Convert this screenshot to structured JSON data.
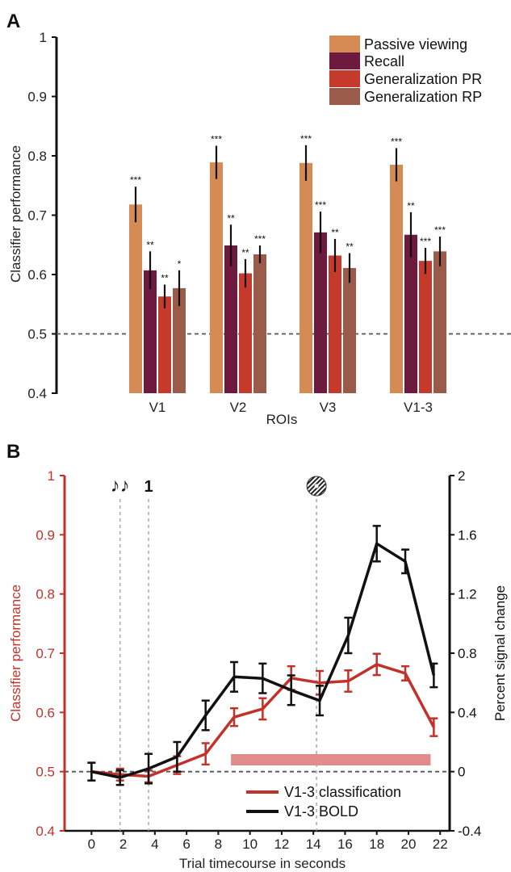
{
  "panels": {
    "a_label": "A",
    "b_label": "B"
  },
  "chart_data": [
    {
      "type": "bar",
      "title": "",
      "xlabel": "ROIs",
      "ylabel": "Classifier performance",
      "ylim": [
        0.4,
        1.0
      ],
      "yticks": [
        "0.4",
        "0.5",
        "0.6",
        "0.7",
        "0.8",
        "0.9",
        "1"
      ],
      "categories": [
        "V1",
        "V2",
        "V3",
        "V1-3"
      ],
      "chance_level": 0.5,
      "legend_position": "top-right",
      "series": [
        {
          "name": "Passive viewing",
          "color": "#D68B54",
          "values": [
            0.718,
            0.789,
            0.788,
            0.785
          ],
          "errors": [
            0.03,
            0.028,
            0.03,
            0.028
          ],
          "significance": [
            "***",
            "***",
            "***",
            "***"
          ]
        },
        {
          "name": "Recall",
          "color": "#6E1A3E",
          "values": [
            0.607,
            0.649,
            0.671,
            0.667
          ],
          "errors": [
            0.032,
            0.035,
            0.035,
            0.038
          ],
          "significance": [
            "**",
            "**",
            "***",
            "**"
          ]
        },
        {
          "name": "Generalization PR",
          "color": "#C63A2C",
          "values": [
            0.563,
            0.602,
            0.632,
            0.623
          ],
          "errors": [
            0.02,
            0.024,
            0.028,
            0.022
          ],
          "significance": [
            "**",
            "**",
            "**",
            "***"
          ]
        },
        {
          "name": "Generalization RP",
          "color": "#9B5B4B",
          "values": [
            0.577,
            0.634,
            0.611,
            0.639
          ],
          "errors": [
            0.03,
            0.015,
            0.025,
            0.025
          ],
          "significance": [
            "*",
            "***",
            "**",
            "***"
          ]
        }
      ]
    },
    {
      "type": "line",
      "title": "",
      "xlabel": "Trial timecourse in seconds",
      "ylabel_left": "Classifier performance",
      "ylabel_right": "Percent signal change",
      "xlim": [
        -1.7,
        22.6
      ],
      "ylim_left": [
        0.4,
        1.0
      ],
      "ylim_right": [
        -0.4,
        2.0
      ],
      "xticks": [
        "0",
        "2",
        "4",
        "6",
        "8",
        "10",
        "12",
        "14",
        "16",
        "18",
        "20",
        "22"
      ],
      "yticks_left": [
        "0.4",
        "0.5",
        "0.6",
        "0.7",
        "0.8",
        "0.9",
        "1"
      ],
      "yticks_right": [
        "-0.4",
        "0",
        "0.4",
        "0.8",
        "1.2",
        "1.6",
        "2"
      ],
      "chance_level": 0.5,
      "legend_position": "bottom-right",
      "events": [
        {
          "x": 1.8,
          "marker": "♪♪",
          "icon": "music-notes-icon"
        },
        {
          "x": 3.6,
          "marker": "1",
          "icon": ""
        },
        {
          "x": 14.2,
          "marker": "",
          "icon": "grating-icon"
        }
      ],
      "significance_bar": {
        "x_start": 8.8,
        "x_end": 21.4,
        "color": "#E08C8C"
      },
      "series": [
        {
          "name": "V1-3 classification",
          "color": "#C1332A",
          "axis": "left",
          "x": [
            0,
            1.8,
            3.6,
            5.4,
            7.2,
            9,
            10.8,
            12.6,
            14.4,
            16.2,
            18,
            19.8,
            21.6
          ],
          "y": [
            0.5,
            0.495,
            0.492,
            0.511,
            0.53,
            0.592,
            0.606,
            0.658,
            0.65,
            0.653,
            0.681,
            0.666,
            0.575
          ],
          "errors": [
            0.015,
            0.01,
            0.01,
            0.015,
            0.018,
            0.015,
            0.018,
            0.02,
            0.02,
            0.018,
            0.018,
            0.012,
            0.015
          ]
        },
        {
          "name": "V1-3 BOLD",
          "color": "#111111",
          "axis": "right",
          "x": [
            0,
            1.8,
            3.6,
            5.4,
            7.2,
            9,
            10.8,
            12.6,
            14.4,
            16.2,
            18,
            19.8,
            21.6
          ],
          "y": [
            0.0,
            -0.04,
            0.02,
            0.1,
            0.38,
            0.64,
            0.63,
            0.55,
            0.48,
            0.92,
            1.54,
            1.42,
            0.65
          ],
          "errors": [
            0.06,
            0.05,
            0.1,
            0.1,
            0.1,
            0.1,
            0.1,
            0.1,
            0.1,
            0.12,
            0.12,
            0.08,
            0.08
          ]
        }
      ]
    }
  ]
}
